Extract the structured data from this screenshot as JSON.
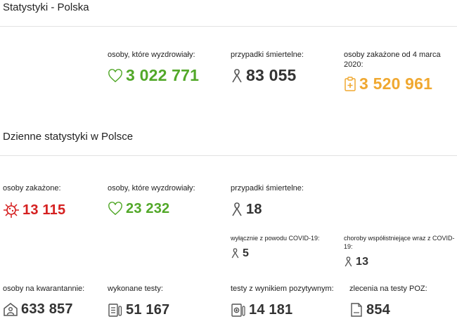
{
  "colors": {
    "green": "#52a829",
    "red": "#d52020",
    "orange": "#f0a830",
    "dark": "#333333",
    "icon_gray": "#555555"
  },
  "poland_totals": {
    "title": "Statystyki - Polska",
    "recovered": {
      "label": "osoby, które wyzdrowiały:",
      "value": "3 022 771",
      "icon": "heart-icon"
    },
    "deaths": {
      "label": "przypadki śmiertelne:",
      "value": "83 055",
      "icon": "ribbon-icon"
    },
    "infected": {
      "label": "osoby zakażone od 4 marca 2020:",
      "value": "3 520 961",
      "icon": "clipboard-medical-icon"
    }
  },
  "daily": {
    "title": "Dzienne statystyki w Polsce",
    "infected": {
      "label": "osoby zakażone:",
      "value": "13 115",
      "icon": "virus-icon"
    },
    "recovered": {
      "label": "osoby, które wyzdrowiały:",
      "value": "23 232",
      "icon": "heart-icon"
    },
    "deaths": {
      "label": "przypadki śmiertelne:",
      "value": "18",
      "icon": "ribbon-icon"
    },
    "deaths_covid_only": {
      "label": "wyłącznie z powodu COVID-19:",
      "value": "5",
      "icon": "ribbon-icon"
    },
    "deaths_comorbid": {
      "label": "choroby współistniejące wraz z COVID-19:",
      "value": "13",
      "icon": "ribbon-icon"
    },
    "quarantine": {
      "label": "osoby na kwarantannie:",
      "value": "633 857",
      "icon": "house-person-icon"
    },
    "tests": {
      "label": "wykonane testy:",
      "value": "51 167",
      "icon": "test-list-icon"
    },
    "positive_tests": {
      "label": "testy z wynikiem pozytywnym:",
      "value": "14 181",
      "icon": "positive-test-icon"
    },
    "poz_orders": {
      "label": "zlecenia na testy POZ:",
      "value": "854",
      "icon": "poz-document-icon"
    }
  }
}
